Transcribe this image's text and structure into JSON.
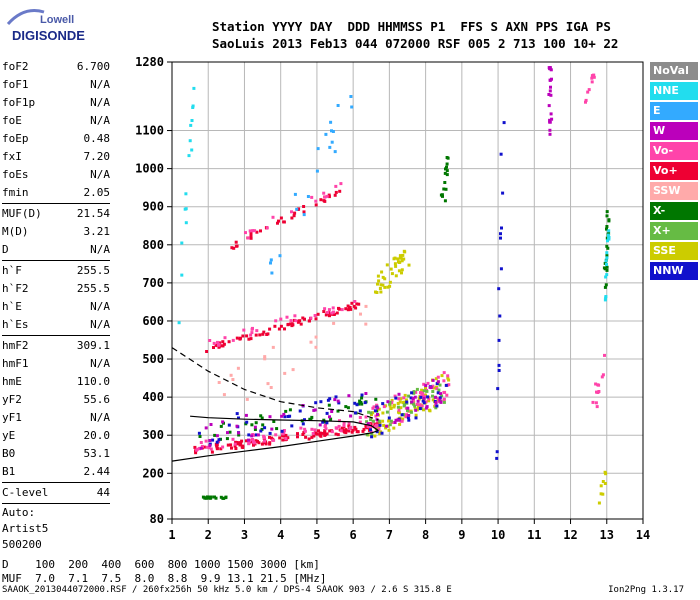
{
  "logo": {
    "brand": "Lowell",
    "product": "DIGISONDE"
  },
  "header": {
    "line1": "Station YYYY DAY  DDD HHMMSS P1  FFS S AXN PPS IGA PS",
    "line2": "SaoLuis 2013 Feb13 044 072000 RSF 005 2 713 100 10+ 22"
  },
  "params": [
    {
      "k": "foF2",
      "v": "6.700"
    },
    {
      "k": "foF1",
      "v": "N/A"
    },
    {
      "k": "foF1p",
      "v": "N/A"
    },
    {
      "k": "foE",
      "v": "N/A"
    },
    {
      "k": "foEp",
      "v": "0.48"
    },
    {
      "k": "fxI",
      "v": "7.20"
    },
    {
      "k": "foEs",
      "v": "N/A"
    },
    {
      "k": "fmin",
      "v": "2.05"
    },
    {
      "sep": true
    },
    {
      "k": "MUF(D)",
      "v": "21.54"
    },
    {
      "k": "M(D)",
      "v": "3.21"
    },
    {
      "k": "D",
      "v": "N/A"
    },
    {
      "sep": true
    },
    {
      "k": "h`F",
      "v": "255.5"
    },
    {
      "k": "h`F2",
      "v": "255.5"
    },
    {
      "k": "h`E",
      "v": "N/A"
    },
    {
      "k": "h`Es",
      "v": "N/A"
    },
    {
      "sep": true
    },
    {
      "k": "hmF2",
      "v": "309.1"
    },
    {
      "k": "hmF1",
      "v": "N/A"
    },
    {
      "k": "hmE",
      "v": "110.0"
    },
    {
      "k": "yF2",
      "v": "55.6"
    },
    {
      "k": "yF1",
      "v": "N/A"
    },
    {
      "k": "yE",
      "v": "20.0"
    },
    {
      "k": "B0",
      "v": "53.1"
    },
    {
      "k": "B1",
      "v": "2.44"
    },
    {
      "sep": true
    },
    {
      "k": "C-level",
      "v": "44"
    },
    {
      "sep": true
    }
  ],
  "auto": [
    "Auto:",
    "Artist5",
    "500200"
  ],
  "legend": [
    {
      "label": "NoVal",
      "color": "#8c8c8c"
    },
    {
      "label": "NNE",
      "color": "#22ddee"
    },
    {
      "label": "E",
      "color": "#33aaff"
    },
    {
      "label": "W",
      "color": "#bb00bb"
    },
    {
      "label": "Vo-",
      "color": "#ff44aa"
    },
    {
      "label": "Vo+",
      "color": "#ee0033"
    },
    {
      "label": "SSW",
      "color": "#ffaaaa"
    },
    {
      "label": "X-",
      "color": "#007700"
    },
    {
      "label": "X+",
      "color": "#66bb44"
    },
    {
      "label": "SSE",
      "color": "#cccc00"
    },
    {
      "label": "NNW",
      "color": "#1111cc"
    }
  ],
  "chart_data": {
    "type": "scatter",
    "title": "",
    "xlabel": "",
    "ylabel": "",
    "xlim": [
      1,
      14
    ],
    "ylim": [
      80,
      1280
    ],
    "xticks": [
      "1",
      "2",
      "3",
      "4",
      "5",
      "6",
      "7",
      "8",
      "9",
      "10",
      "11",
      "12",
      "13",
      "14"
    ],
    "yticks": [
      "80",
      "200",
      "300",
      "400",
      "500",
      "600",
      "700",
      "800",
      "900",
      "1000",
      "1100",
      "1280"
    ],
    "grid": true,
    "legend_position": "right",
    "curves": [
      {
        "style": "solid",
        "points": [
          [
            1.0,
            232
          ],
          [
            2.0,
            246
          ],
          [
            3.0,
            258
          ],
          [
            4.0,
            270
          ],
          [
            5.0,
            284
          ],
          [
            6.0,
            298
          ],
          [
            6.5,
            306
          ],
          [
            6.7,
            312
          ]
        ]
      },
      {
        "style": "solid",
        "points": [
          [
            6.7,
            312
          ],
          [
            6.5,
            325
          ],
          [
            6.0,
            335
          ],
          [
            5.0,
            338
          ],
          [
            4.0,
            340
          ],
          [
            3.0,
            342
          ],
          [
            2.0,
            346
          ],
          [
            1.5,
            350
          ]
        ]
      },
      {
        "style": "dashed",
        "points": [
          [
            1.0,
            530
          ],
          [
            2.0,
            468
          ],
          [
            3.0,
            420
          ],
          [
            4.0,
            388
          ],
          [
            5.0,
            372
          ],
          [
            6.0,
            362
          ],
          [
            6.7,
            340
          ]
        ]
      }
    ],
    "traces": [
      {
        "x0": 1.6,
        "x1": 6.7,
        "y0": 262,
        "y1": 330,
        "color": "#ee0033",
        "n": 120,
        "spread": 10
      },
      {
        "x0": 1.6,
        "x1": 6.7,
        "y0": 272,
        "y1": 345,
        "color": "#ff44aa",
        "n": 60,
        "spread": 14
      },
      {
        "x0": 1.7,
        "x1": 6.6,
        "y0": 300,
        "y1": 380,
        "color": "#007700",
        "n": 40,
        "spread": 30
      },
      {
        "x0": 1.7,
        "x1": 6.6,
        "y0": 310,
        "y1": 390,
        "color": "#1111cc",
        "n": 40,
        "spread": 35
      },
      {
        "x0": 1.8,
        "x1": 6.6,
        "y0": 300,
        "y1": 390,
        "color": "#bb00bb",
        "n": 30,
        "spread": 35
      },
      {
        "x0": 1.9,
        "x1": 6.2,
        "y0": 530,
        "y1": 650,
        "color": "#ee0033",
        "n": 70,
        "spread": 8
      },
      {
        "x0": 1.9,
        "x1": 6.2,
        "y0": 540,
        "y1": 660,
        "color": "#ff44aa",
        "n": 30,
        "spread": 12
      },
      {
        "x0": 2.6,
        "x1": 5.7,
        "y0": 800,
        "y1": 950,
        "color": "#ee0033",
        "n": 35,
        "spread": 8
      },
      {
        "x0": 2.6,
        "x1": 5.7,
        "y0": 810,
        "y1": 960,
        "color": "#ff44aa",
        "n": 15,
        "spread": 10
      },
      {
        "x0": 6.4,
        "x1": 8.6,
        "y0": 330,
        "y1": 430,
        "color": "#cccc00",
        "n": 80,
        "spread": 40
      },
      {
        "x0": 6.3,
        "x1": 8.6,
        "y0": 330,
        "y1": 440,
        "color": "#ff44aa",
        "n": 60,
        "spread": 40
      },
      {
        "x0": 6.3,
        "x1": 8.6,
        "y0": 340,
        "y1": 420,
        "color": "#66bb44",
        "n": 40,
        "spread": 40
      },
      {
        "x0": 6.4,
        "x1": 8.6,
        "y0": 330,
        "y1": 430,
        "color": "#1111cc",
        "n": 30,
        "spread": 40
      },
      {
        "x0": 6.4,
        "x1": 8.6,
        "y0": 340,
        "y1": 430,
        "color": "#bb00bb",
        "n": 30,
        "spread": 40
      },
      {
        "x0": 6.6,
        "x1": 7.5,
        "y0": 690,
        "y1": 780,
        "color": "#cccc00",
        "n": 40,
        "spread": 30
      },
      {
        "x0": 2.1,
        "x1": 6.5,
        "y0": 400,
        "y1": 600,
        "color": "#ffaaaa",
        "n": 20,
        "spread": 60
      },
      {
        "x0": 1.1,
        "x1": 1.6,
        "y0": 600,
        "y1": 1250,
        "color": "#22ddee",
        "n": 15,
        "spread": 40
      },
      {
        "x0": 3.5,
        "x1": 6.0,
        "y0": 700,
        "y1": 1200,
        "color": "#33aaff",
        "n": 20,
        "spread": 60
      },
      {
        "x0": 1.8,
        "x1": 2.5,
        "y0": 140,
        "y1": 140,
        "color": "#007700",
        "n": 20,
        "spread": 2
      },
      {
        "x0": 11.4,
        "x1": 11.4,
        "y0": 1080,
        "y1": 1270,
        "color": "#bb00bb",
        "n": 20,
        "spread": 4
      },
      {
        "x0": 12.9,
        "x1": 13.0,
        "y0": 680,
        "y1": 900,
        "color": "#007700",
        "n": 20,
        "spread": 15
      },
      {
        "x0": 12.9,
        "x1": 13.0,
        "y0": 640,
        "y1": 860,
        "color": "#22ddee",
        "n": 15,
        "spread": 15
      },
      {
        "x0": 12.3,
        "x1": 12.6,
        "y0": 1150,
        "y1": 1260,
        "color": "#ff44aa",
        "n": 10,
        "spread": 15
      },
      {
        "x0": 9.9,
        "x1": 10.1,
        "y0": 150,
        "y1": 1180,
        "color": "#1111cc",
        "n": 15,
        "spread": 40
      },
      {
        "x0": 8.4,
        "x1": 8.6,
        "y0": 900,
        "y1": 1030,
        "color": "#007700",
        "n": 15,
        "spread": 30
      },
      {
        "x0": 12.6,
        "x1": 12.9,
        "y0": 380,
        "y1": 500,
        "color": "#ff44aa",
        "n": 12,
        "spread": 30
      },
      {
        "x0": 12.7,
        "x1": 12.9,
        "y0": 120,
        "y1": 200,
        "color": "#cccc00",
        "n": 8,
        "spread": 20
      }
    ]
  },
  "footer": {
    "line1": "D    100  200  400  600  800 1000 1500 3000 [km]",
    "line2": "MUF  7.0  7.1  7.5  8.0  8.8  9.9 13.1 21.5 [MHz]"
  },
  "bottom": "SAAOK_2013044072000.RSF / 260fx256h 50 kHz 5.0 km / DPS-4 SAAOK 903 / 2.6 S 315.8 E",
  "version": "Ion2Png 1.3.17"
}
